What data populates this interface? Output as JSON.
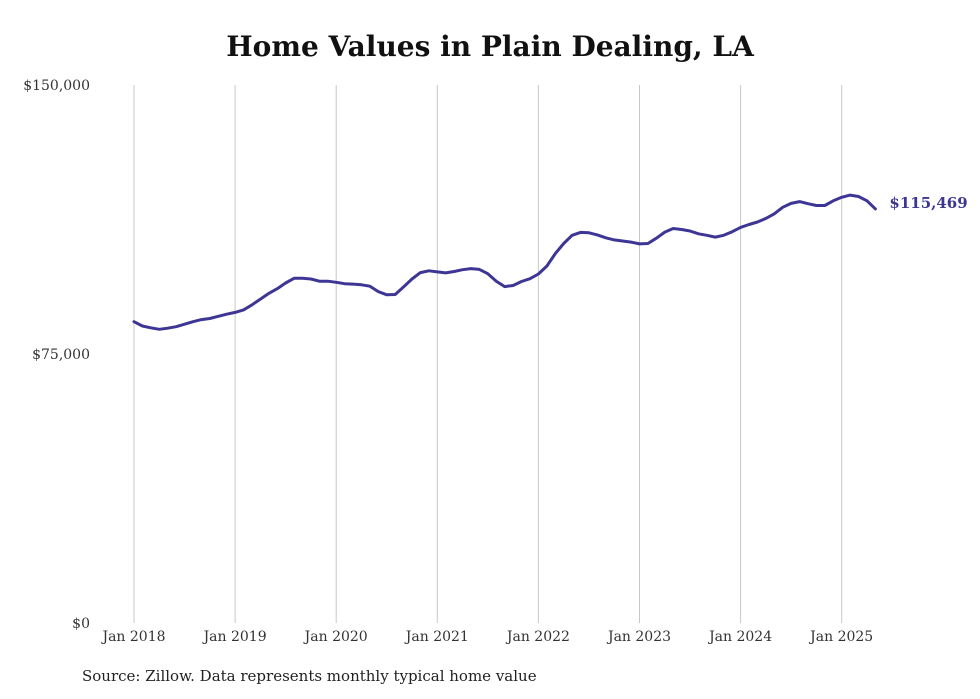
{
  "chart_data": {
    "type": "line",
    "title": "Home Values in Plain Dealing, LA",
    "xlabel": "",
    "ylabel": "",
    "ylim": [
      0,
      150000
    ],
    "y_ticks": [
      "$150,000",
      "$75,000",
      "$0"
    ],
    "y_tick_values": [
      150000,
      75000,
      0
    ],
    "x_ticks": [
      "Jan 2018",
      "Jan 2019",
      "Jan 2020",
      "Jan 2021",
      "Jan 2022",
      "Jan 2023",
      "Jan 2024",
      "Jan 2025"
    ],
    "grid": "vertical lines at each January",
    "series_color": "#3d3694",
    "end_label": "$115,469",
    "series": [
      {
        "x": [
          "2018-01",
          "2018-02",
          "2018-03",
          "2018-04",
          "2018-05",
          "2018-06",
          "2018-07",
          "2018-08",
          "2018-09",
          "2018-10",
          "2018-11",
          "2018-12",
          "2019-01",
          "2019-02",
          "2019-03",
          "2019-04",
          "2019-05",
          "2019-06",
          "2019-07",
          "2019-08",
          "2019-09",
          "2019-10",
          "2019-11",
          "2019-12",
          "2020-01",
          "2020-02",
          "2020-03",
          "2020-04",
          "2020-05",
          "2020-06",
          "2020-07",
          "2020-08",
          "2020-09",
          "2020-10",
          "2020-11",
          "2020-12",
          "2021-01",
          "2021-02",
          "2021-03",
          "2021-04",
          "2021-05",
          "2021-06",
          "2021-07",
          "2021-08",
          "2021-09",
          "2021-10",
          "2021-11",
          "2021-12",
          "2022-01",
          "2022-02",
          "2022-03",
          "2022-04",
          "2022-05",
          "2022-06",
          "2022-07",
          "2022-08",
          "2022-09",
          "2022-10",
          "2022-11",
          "2022-12",
          "2023-01",
          "2023-02",
          "2023-03",
          "2023-04",
          "2023-05",
          "2023-06",
          "2023-07",
          "2023-08",
          "2023-09",
          "2023-10",
          "2023-11",
          "2023-12",
          "2024-01",
          "2024-02",
          "2024-03",
          "2024-04",
          "2024-05",
          "2024-06",
          "2024-07",
          "2024-08",
          "2024-09",
          "2024-10",
          "2024-11",
          "2024-12",
          "2025-01",
          "2025-02",
          "2025-03",
          "2025-04",
          "2025-05"
        ],
        "values": [
          84000,
          82800,
          82300,
          81900,
          82200,
          82600,
          83300,
          84000,
          84600,
          84900,
          85500,
          86100,
          86600,
          87300,
          88700,
          90300,
          91900,
          93200,
          94800,
          96100,
          96100,
          95900,
          95300,
          95300,
          95000,
          94600,
          94500,
          94300,
          93900,
          92400,
          91500,
          91600,
          93700,
          95900,
          97700,
          98200,
          97900,
          97600,
          98000,
          98500,
          98800,
          98600,
          97400,
          95300,
          93800,
          94100,
          95200,
          96000,
          97300,
          99500,
          103000,
          105800,
          108100,
          108900,
          108800,
          108200,
          107400,
          106800,
          106500,
          106200,
          105700,
          105800,
          107300,
          109000,
          110000,
          109700,
          109300,
          108500,
          108100,
          107600,
          108100,
          109100,
          110300,
          111100,
          111800,
          112800,
          114100,
          115900,
          117000,
          117500,
          116900,
          116400,
          116400,
          117700,
          118700,
          119300,
          118900,
          117700,
          115469
        ]
      }
    ]
  },
  "source_note": "Source: Zillow. Data represents monthly typical home value"
}
